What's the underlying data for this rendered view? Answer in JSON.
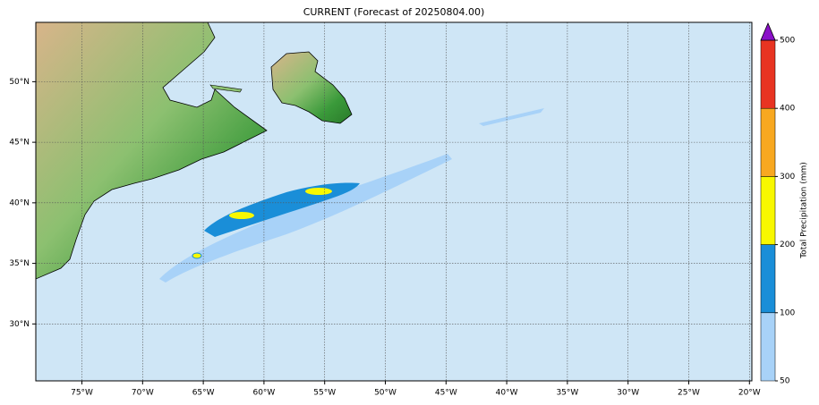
{
  "map": {
    "title": "CURRENT (Forecast of 20250804.00)",
    "xlim": [
      -78.8,
      -19.8
    ],
    "ylim": [
      25.3,
      54.9
    ],
    "xticks": [
      {
        "value": -75,
        "label": "75°W"
      },
      {
        "value": -70,
        "label": "70°W"
      },
      {
        "value": -65,
        "label": "65°W"
      },
      {
        "value": -60,
        "label": "60°W"
      },
      {
        "value": -55,
        "label": "55°W"
      },
      {
        "value": -50,
        "label": "50°W"
      },
      {
        "value": -45,
        "label": "45°W"
      },
      {
        "value": -40,
        "label": "40°W"
      },
      {
        "value": -35,
        "label": "35°W"
      },
      {
        "value": -30,
        "label": "30°W"
      },
      {
        "value": -25,
        "label": "25°W"
      },
      {
        "value": -20,
        "label": "20°W"
      }
    ],
    "yticks": [
      {
        "value": 30,
        "label": "30°N"
      },
      {
        "value": 35,
        "label": "35°N"
      },
      {
        "value": 40,
        "label": "40°N"
      },
      {
        "value": 45,
        "label": "45°N"
      },
      {
        "value": 50,
        "label": "50°N"
      }
    ],
    "grid": true,
    "colorbar": {
      "label": "Total Precipitation (mm)",
      "ticks": [
        50,
        100,
        200,
        300,
        400,
        500
      ],
      "colors": [
        "#a8d2f8",
        "#1a8ed8",
        "#f8f800",
        "#f8a820",
        "#e83422"
      ],
      "extend_color": "#8a10c8"
    }
  }
}
